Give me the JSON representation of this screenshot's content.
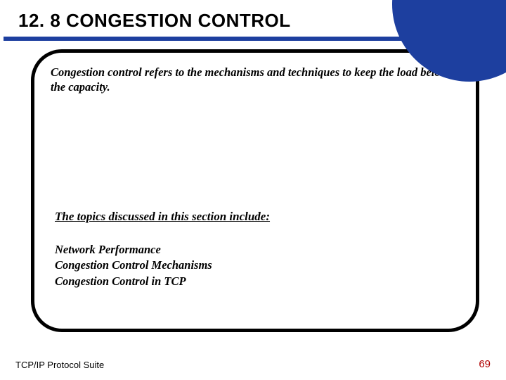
{
  "title": "12. 8   CONGESTION CONTROL",
  "intro": "Congestion control refers to the mechanisms and techniques to keep the load below the capacity.",
  "topics_heading": "The topics discussed in this section include:",
  "topics": {
    "t1": "Network Performance",
    "t2": "Congestion Control Mechanisms",
    "t3": "Congestion Control in TCP"
  },
  "footer_left": "TCP/IP Protocol Suite",
  "page_number": "69",
  "colors": {
    "accent": "#1d3f9f",
    "page_num": "#b00000",
    "border": "#000000",
    "background": "#ffffff"
  }
}
